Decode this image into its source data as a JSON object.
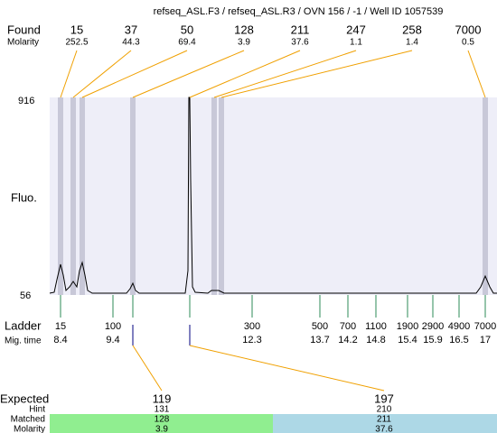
{
  "title": "refseq_ASL.F3 / refseq_ASL.R3 / OVN 156 / -1 / Well ID 1057539",
  "found": {
    "label": "Found",
    "molarity_label": "Molarity",
    "sizes": [
      15,
      37,
      50,
      128,
      211,
      247,
      258,
      7000
    ],
    "molarity": [
      252.5,
      44.3,
      69.4,
      3.9,
      37.6,
      1.1,
      1.4,
      0.5
    ]
  },
  "y_axis": {
    "label": "Fluo.",
    "max": 916,
    "min": 56
  },
  "ladder": {
    "label": "Ladder",
    "time_label": "Mig. time",
    "sizes": [
      15,
      100,
      300,
      500,
      700,
      1100,
      1900,
      2900,
      4900,
      7000
    ],
    "mig_times": [
      8.4,
      9.4,
      12.3,
      13.7,
      14.2,
      14.8,
      15.4,
      15.9,
      16.5,
      17
    ]
  },
  "expected": {
    "label": "Expected",
    "hint_label": "Hint",
    "matched_label": "Matched",
    "molarity_label": "Molarity",
    "sizes": [
      119,
      197
    ],
    "hint": [
      131,
      210
    ],
    "matched": [
      128,
      211
    ],
    "molarity": [
      3.9,
      37.6
    ]
  }
}
